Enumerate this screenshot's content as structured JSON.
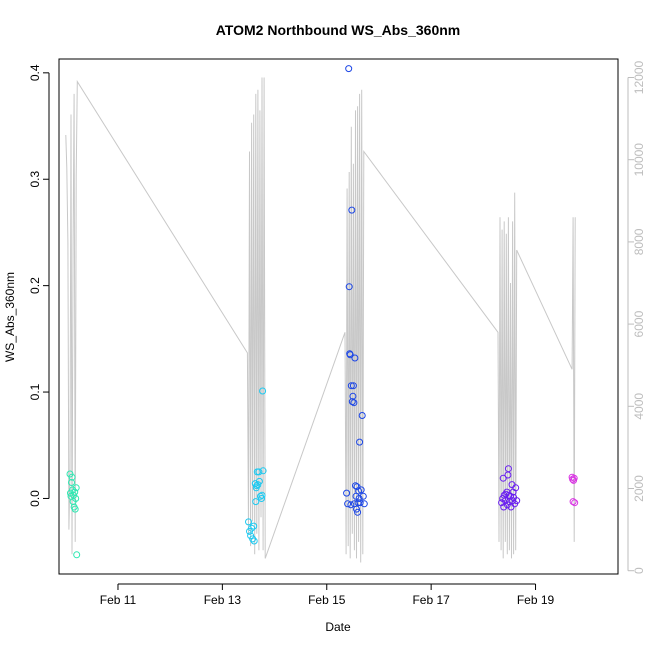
{
  "chart_data": {
    "type": "scatter",
    "title": "ATOM2 Northbound WS_Abs_360nm",
    "xlabel": "Date",
    "ylabel": "WS_Abs_360nm",
    "xlim": [
      9.87,
      20.58
    ],
    "ylim": [
      -0.071,
      0.413
    ],
    "y2lim": [
      -80,
      12450
    ],
    "x_ticks": [
      {
        "v": 11,
        "label": "Feb 11"
      },
      {
        "v": 13,
        "label": "Feb 13"
      },
      {
        "v": 15,
        "label": "Feb 15"
      },
      {
        "v": 17,
        "label": "Feb 17"
      },
      {
        "v": 19,
        "label": "Feb 19"
      }
    ],
    "y_ticks": [
      {
        "v": 0.0,
        "label": "0.0"
      },
      {
        "v": 0.1,
        "label": "0.1"
      },
      {
        "v": 0.2,
        "label": "0.2"
      },
      {
        "v": 0.3,
        "label": "0.3"
      },
      {
        "v": 0.4,
        "label": "0.4"
      }
    ],
    "y2_ticks": [
      {
        "v": 0,
        "label": "0"
      },
      {
        "v": 2000,
        "label": "2000"
      },
      {
        "v": 4000,
        "label": "4000"
      },
      {
        "v": 6000,
        "label": "6000"
      },
      {
        "v": 8000,
        "label": "8000"
      },
      {
        "v": 10000,
        "label": "10000"
      },
      {
        "v": 12000,
        "label": "12000"
      }
    ],
    "line_color": "#c8c8c8",
    "grid": false,
    "series": [
      {
        "color": "#2fe8b2",
        "points": [
          [
            10.08,
            0.023
          ],
          [
            10.09,
            0.005
          ],
          [
            10.1,
            0.002
          ],
          [
            10.11,
            0.015
          ],
          [
            10.12,
            0.02
          ],
          [
            10.13,
            0.008
          ],
          [
            10.14,
            -0.003
          ],
          [
            10.15,
            0.003
          ],
          [
            10.16,
            -0.008
          ],
          [
            10.17,
            0.006
          ],
          [
            10.18,
            -0.01
          ],
          [
            10.19,
            0.0
          ],
          [
            10.2,
            0.01
          ],
          [
            10.21,
            -0.053
          ]
        ]
      },
      {
        "color": "#1ec9f0",
        "points": [
          [
            13.5,
            -0.022
          ],
          [
            13.52,
            -0.031
          ],
          [
            13.54,
            -0.035
          ],
          [
            13.56,
            -0.028
          ],
          [
            13.58,
            -0.038
          ],
          [
            13.6,
            -0.026
          ],
          [
            13.61,
            -0.04
          ],
          [
            13.63,
            0.014
          ],
          [
            13.64,
            -0.003
          ],
          [
            13.65,
            0.01
          ],
          [
            13.66,
            0.012
          ],
          [
            13.67,
            0.025
          ],
          [
            13.68,
            0.013
          ],
          [
            13.7,
            0.025
          ],
          [
            13.71,
            0.016
          ],
          [
            13.73,
            0.002
          ],
          [
            13.75,
            0.0
          ],
          [
            13.76,
            0.003
          ],
          [
            13.77,
            0.101
          ],
          [
            13.78,
            0.026
          ]
        ]
      },
      {
        "color": "#1c46e6",
        "points": [
          [
            15.38,
            0.005
          ],
          [
            15.4,
            -0.005
          ],
          [
            15.42,
            0.404
          ],
          [
            15.43,
            0.199
          ],
          [
            15.44,
            0.136
          ],
          [
            15.45,
            0.135
          ],
          [
            15.46,
            -0.006
          ],
          [
            15.47,
            0.106
          ],
          [
            15.48,
            0.271
          ],
          [
            15.49,
            0.091
          ],
          [
            15.5,
            0.096
          ],
          [
            15.51,
            0.106
          ],
          [
            15.52,
            0.09
          ],
          [
            15.53,
            -0.005
          ],
          [
            15.54,
            0.132
          ],
          [
            15.55,
            0.012
          ],
          [
            15.56,
            0.002
          ],
          [
            15.57,
            -0.01
          ],
          [
            15.58,
            0.011
          ],
          [
            15.59,
            -0.013
          ],
          [
            15.6,
            -0.004
          ],
          [
            15.61,
            0.007
          ],
          [
            15.62,
            0.0
          ],
          [
            15.63,
            0.053
          ],
          [
            15.64,
            -0.004
          ],
          [
            15.66,
            0.008
          ],
          [
            15.68,
            0.078
          ],
          [
            15.7,
            0.002
          ],
          [
            15.72,
            -0.005
          ]
        ]
      },
      {
        "color": "#6a1ff0",
        "points": [
          [
            18.35,
            -0.004
          ],
          [
            18.37,
            0.0
          ],
          [
            18.38,
            0.019
          ],
          [
            18.39,
            -0.008
          ],
          [
            18.4,
            0.003
          ],
          [
            18.42,
            -0.002
          ],
          [
            18.43,
            0.004
          ],
          [
            18.45,
            0.006
          ],
          [
            18.46,
            -0.006
          ],
          [
            18.47,
            0.022
          ],
          [
            18.48,
            0.028
          ],
          [
            18.49,
            0.003
          ],
          [
            18.5,
            -0.003
          ],
          [
            18.52,
            0.002
          ],
          [
            18.53,
            -0.008
          ],
          [
            18.55,
            0.013
          ],
          [
            18.56,
            -0.002
          ],
          [
            18.57,
            0.006
          ],
          [
            18.58,
            0.001
          ],
          [
            18.6,
            -0.005
          ],
          [
            18.62,
            0.01
          ],
          [
            18.64,
            -0.002
          ]
        ]
      },
      {
        "color": "#d935e3",
        "points": [
          [
            19.7,
            0.02
          ],
          [
            19.71,
            0.018
          ],
          [
            19.72,
            -0.003
          ],
          [
            19.73,
            0.017
          ],
          [
            19.74,
            0.019
          ],
          [
            19.75,
            -0.004
          ]
        ]
      }
    ],
    "secondary_line": [
      [
        10.0,
        10600
      ],
      [
        10.02,
        9800
      ],
      [
        10.04,
        8000
      ],
      [
        10.06,
        1000
      ],
      [
        10.08,
        2400
      ],
      [
        10.1,
        11100
      ],
      [
        10.12,
        400
      ],
      [
        10.14,
        8000
      ],
      [
        10.16,
        11600
      ],
      [
        10.18,
        700
      ],
      [
        10.2,
        9600
      ],
      [
        10.22,
        11900
      ],
      [
        13.48,
        5300
      ],
      [
        13.5,
        900
      ],
      [
        13.52,
        10200
      ],
      [
        13.54,
        600
      ],
      [
        13.56,
        10900
      ],
      [
        13.58,
        1200
      ],
      [
        13.6,
        11100
      ],
      [
        13.62,
        400
      ],
      [
        13.64,
        11600
      ],
      [
        13.66,
        900
      ],
      [
        13.68,
        11700
      ],
      [
        13.7,
        500
      ],
      [
        13.72,
        11200
      ],
      [
        13.74,
        1300
      ],
      [
        13.76,
        12000
      ],
      [
        13.78,
        500
      ],
      [
        13.8,
        12000
      ],
      [
        13.82,
        300
      ],
      [
        15.35,
        5800
      ],
      [
        15.37,
        400
      ],
      [
        15.39,
        9300
      ],
      [
        15.41,
        600
      ],
      [
        15.43,
        9700
      ],
      [
        15.45,
        300
      ],
      [
        15.47,
        10800
      ],
      [
        15.49,
        900
      ],
      [
        15.51,
        9900
      ],
      [
        15.53,
        500
      ],
      [
        15.55,
        11200
      ],
      [
        15.57,
        300
      ],
      [
        15.59,
        11300
      ],
      [
        15.61,
        700
      ],
      [
        15.63,
        11600
      ],
      [
        15.65,
        200
      ],
      [
        15.67,
        11700
      ],
      [
        15.69,
        400
      ],
      [
        15.71,
        10200
      ],
      [
        18.28,
        5800
      ],
      [
        18.3,
        700
      ],
      [
        18.32,
        8600
      ],
      [
        18.34,
        500
      ],
      [
        18.36,
        8300
      ],
      [
        18.38,
        300
      ],
      [
        18.4,
        8500
      ],
      [
        18.42,
        700
      ],
      [
        18.44,
        8200
      ],
      [
        18.46,
        400
      ],
      [
        18.48,
        8600
      ],
      [
        18.5,
        500
      ],
      [
        18.52,
        7000
      ],
      [
        18.54,
        300
      ],
      [
        18.56,
        8500
      ],
      [
        18.58,
        400
      ],
      [
        18.6,
        9200
      ],
      [
        18.62,
        500
      ],
      [
        18.64,
        7800
      ],
      [
        19.7,
        4900
      ],
      [
        19.72,
        8600
      ],
      [
        19.74,
        700
      ],
      [
        19.76,
        8600
      ]
    ]
  }
}
